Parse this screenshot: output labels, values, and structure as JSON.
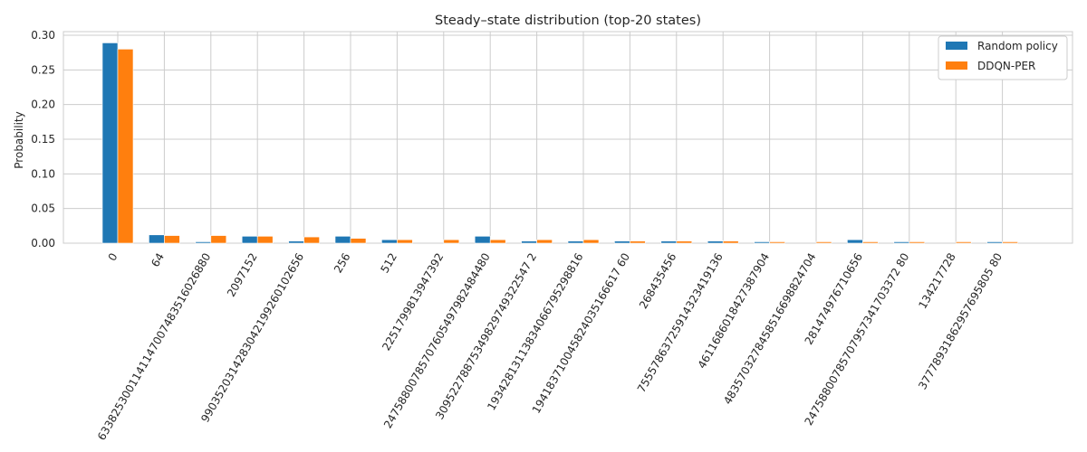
{
  "chart_data": {
    "type": "bar",
    "title": "Steady–state distribution (top-20 states)",
    "xlabel": "",
    "ylabel": "Probability",
    "ylim": [
      0,
      0.3
    ],
    "yticks": [
      "0.00",
      "0.05",
      "0.10",
      "0.15",
      "0.20",
      "0.25",
      "0.30"
    ],
    "grid": true,
    "legend_position": "top-right",
    "categories": [
      "0",
      "64",
      "6338253001141147007483516026880",
      "2097152",
      "9903520314283042199260102656",
      "256",
      "512",
      "2251799813947392",
      "24758800785707605497982484480",
      "30952278875349829749322547 2",
      "19342813113834066795298816",
      "194183710045824035166617 60",
      "268435456",
      "75557863725914323419136",
      "4611686018427387904",
      "4835703278458516698824704",
      "281474976710656",
      "24758800785707957341703372 80",
      "134217728",
      "37778931862957695805 80"
    ],
    "series": [
      {
        "name": "Random policy",
        "color": "#1f77b4",
        "values": [
          0.289,
          0.012,
          0.002,
          0.01,
          0.003,
          0.01,
          0.005,
          0.0,
          0.01,
          0.003,
          0.003,
          0.003,
          0.003,
          0.003,
          0.002,
          0.0,
          0.005,
          0.002,
          0.0,
          0.002
        ]
      },
      {
        "name": "DDQN-PER",
        "color": "#ff7f0e",
        "values": [
          0.28,
          0.011,
          0.011,
          0.01,
          0.009,
          0.007,
          0.005,
          0.005,
          0.005,
          0.005,
          0.005,
          0.003,
          0.003,
          0.003,
          0.002,
          0.002,
          0.002,
          0.002,
          0.002,
          0.002
        ]
      }
    ]
  }
}
